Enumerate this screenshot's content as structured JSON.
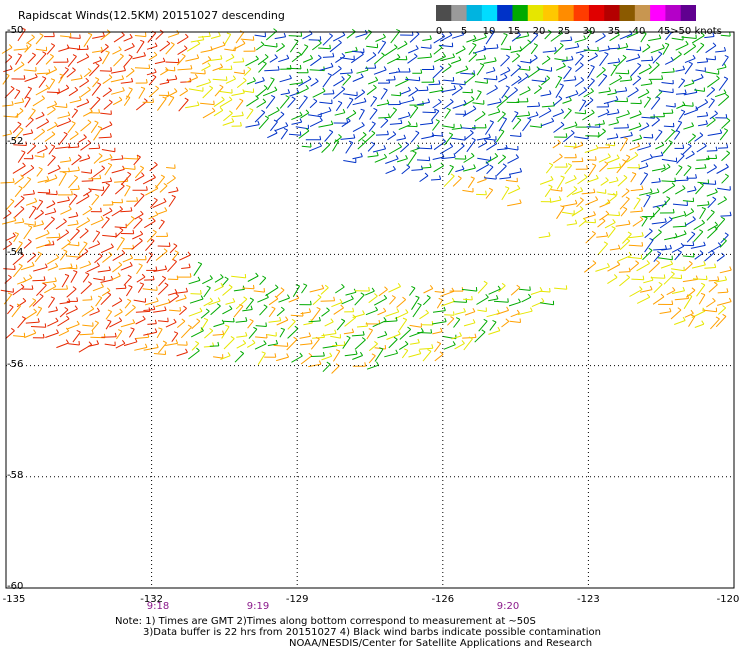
{
  "title": "Rapidscat Winds(12.5KM) 20151027 descending",
  "colorbar": {
    "labels": [
      "0",
      "5",
      "10",
      "15",
      "20",
      "25",
      "30",
      "35",
      "40",
      "45",
      ">50 knots"
    ],
    "colors": [
      "#4d4d4d",
      "#9a9a9a",
      "#00b4e0",
      "#00dcff",
      "#0032c8",
      "#00aa00",
      "#e6e600",
      "#ffc800",
      "#ff8c00",
      "#ff3c00",
      "#e00000",
      "#b40000",
      "#8b5a00",
      "#c89650",
      "#ff00ff",
      "#b400c8",
      "#600090"
    ]
  },
  "map": {
    "lat_labels": [
      "-50",
      "-52",
      "-54",
      "-56",
      "-58",
      "-60"
    ],
    "lon_labels": [
      "-135",
      "-132",
      "-129",
      "-126",
      "-123",
      "-120"
    ],
    "time_labels": [
      "9:18",
      "9:19",
      "9:20"
    ],
    "wind_colors": {
      "blue": "#0032c8",
      "green": "#00aa00",
      "yellow": "#e6e600",
      "orange": "#ffa000",
      "red": "#e62800"
    }
  },
  "notes": {
    "line1": "Note: 1) Times are GMT 2)Times along bottom correspond to measurement at ~50S",
    "line2": "3)Data buffer is 22 hrs from 20151027 4) Black wind barbs indicate possible contamination",
    "line3": "NOAA/NESDIS/Center for Satellite Applications and Research"
  }
}
